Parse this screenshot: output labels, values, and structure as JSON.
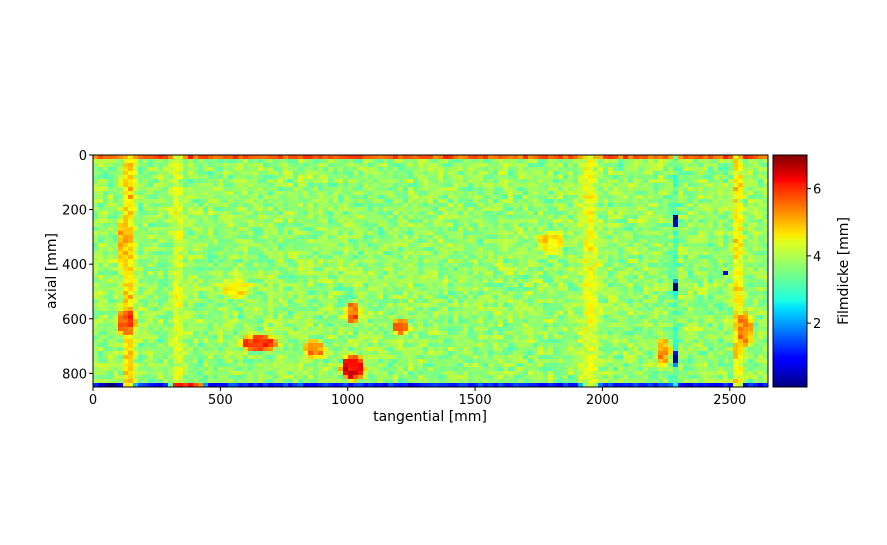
{
  "chart_data": {
    "type": "heatmap",
    "title": "",
    "xlabel": "tangential [mm]",
    "ylabel": "axial [mm]",
    "xlim": [
      0,
      2650
    ],
    "ylim": [
      850,
      0
    ],
    "y_inverted": true,
    "x_ticks": [
      0,
      500,
      1000,
      1500,
      2000,
      2500
    ],
    "x_tick_labels": [
      "0",
      "500",
      "1000",
      "1500",
      "2000",
      "2500"
    ],
    "y_ticks": [
      0,
      200,
      400,
      600,
      800
    ],
    "y_tick_labels": [
      "0",
      "200",
      "400",
      "600",
      "800"
    ],
    "colorbar": {
      "label": "Filmdicke [mm]",
      "range": [
        0.1,
        7.0
      ],
      "ticks": [
        2,
        4,
        6
      ],
      "tick_labels": [
        "2",
        "4",
        "6"
      ],
      "colormap": "jet"
    },
    "background_value": 3.7,
    "features": [
      {
        "kind": "band",
        "axis": "axial",
        "at": 5,
        "width": 12,
        "value": 5.8,
        "note": "top edge thicker"
      },
      {
        "kind": "band",
        "axis": "axial",
        "at": 843,
        "width": 14,
        "value": 1.2,
        "note": "bottom edge thin"
      },
      {
        "kind": "band",
        "axis": "tangential",
        "at": 140,
        "width": 70,
        "value": 4.7
      },
      {
        "kind": "band",
        "axis": "tangential",
        "at": 2280,
        "width": 30,
        "value": 3.1
      },
      {
        "kind": "band",
        "axis": "tangential",
        "at": 2530,
        "width": 50,
        "value": 4.6
      },
      {
        "kind": "band",
        "axis": "tangential",
        "at": 1950,
        "width": 90,
        "value": 4.3
      },
      {
        "kind": "band",
        "axis": "tangential",
        "at": 330,
        "width": 60,
        "value": 4.2
      },
      {
        "kind": "blob",
        "x": 130,
        "y": 610,
        "rx": 45,
        "ry": 60,
        "value": 5.6
      },
      {
        "kind": "blob",
        "x": 120,
        "y": 330,
        "rx": 30,
        "ry": 120,
        "value": 4.9
      },
      {
        "kind": "blob",
        "x": 650,
        "y": 690,
        "rx": 90,
        "ry": 35,
        "value": 5.7
      },
      {
        "kind": "blob",
        "x": 870,
        "y": 710,
        "rx": 50,
        "ry": 40,
        "value": 5.2
      },
      {
        "kind": "blob",
        "x": 1020,
        "y": 780,
        "rx": 55,
        "ry": 55,
        "value": 6.2
      },
      {
        "kind": "blob",
        "x": 1020,
        "y": 580,
        "rx": 35,
        "ry": 45,
        "value": 5.5
      },
      {
        "kind": "blob",
        "x": 1210,
        "y": 630,
        "rx": 40,
        "ry": 35,
        "value": 5.3
      },
      {
        "kind": "blob",
        "x": 370,
        "y": 840,
        "rx": 80,
        "ry": 12,
        "value": 5.8
      },
      {
        "kind": "blob",
        "x": 1800,
        "y": 320,
        "rx": 60,
        "ry": 50,
        "value": 4.5
      },
      {
        "kind": "blob",
        "x": 2240,
        "y": 720,
        "rx": 35,
        "ry": 60,
        "value": 5.0
      },
      {
        "kind": "blob",
        "x": 2560,
        "y": 640,
        "rx": 35,
        "ry": 80,
        "value": 5.1
      },
      {
        "kind": "blob",
        "x": 560,
        "y": 490,
        "rx": 80,
        "ry": 40,
        "value": 4.5
      },
      {
        "kind": "blob",
        "x": 2290,
        "y": 240,
        "rx": 15,
        "ry": 25,
        "value": 0.2
      },
      {
        "kind": "blob",
        "x": 2285,
        "y": 480,
        "rx": 14,
        "ry": 22,
        "value": 0.3
      },
      {
        "kind": "blob",
        "x": 2290,
        "y": 745,
        "rx": 15,
        "ry": 28,
        "value": 0.2
      },
      {
        "kind": "blob",
        "x": 2480,
        "y": 430,
        "rx": 6,
        "ry": 6,
        "value": 0.8
      },
      {
        "kind": "blob",
        "x": 70,
        "y": 840,
        "rx": 50,
        "ry": 10,
        "value": 0.2
      }
    ]
  }
}
